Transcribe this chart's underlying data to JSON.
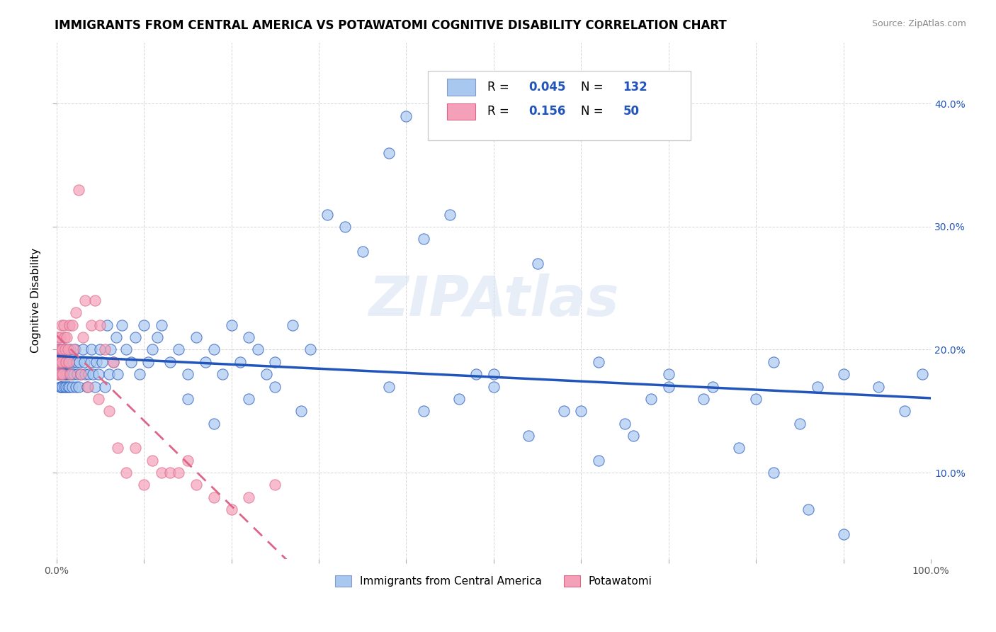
{
  "title": "IMMIGRANTS FROM CENTRAL AMERICA VS POTAWATOMI COGNITIVE DISABILITY CORRELATION CHART",
  "source": "Source: ZipAtlas.com",
  "ylabel": "Cognitive Disability",
  "y_ticks": [
    0.1,
    0.2,
    0.3,
    0.4
  ],
  "y_tick_labels": [
    "10.0%",
    "20.0%",
    "30.0%",
    "40.0%"
  ],
  "xlim": [
    0.0,
    1.0
  ],
  "ylim": [
    0.03,
    0.45
  ],
  "blue_R": "0.045",
  "blue_N": "132",
  "pink_R": "0.156",
  "pink_N": "50",
  "blue_color": "#a8c8f0",
  "pink_color": "#f4a0b8",
  "blue_line_color": "#2255bb",
  "pink_line_color": "#dd6688",
  "legend_label_blue": "Immigrants from Central America",
  "legend_label_pink": "Potawatomi",
  "blue_scatter_x": [
    0.001,
    0.002,
    0.002,
    0.003,
    0.003,
    0.004,
    0.004,
    0.005,
    0.005,
    0.005,
    0.006,
    0.006,
    0.006,
    0.007,
    0.007,
    0.008,
    0.008,
    0.009,
    0.009,
    0.01,
    0.01,
    0.01,
    0.011,
    0.011,
    0.012,
    0.012,
    0.013,
    0.013,
    0.014,
    0.015,
    0.015,
    0.016,
    0.016,
    0.017,
    0.018,
    0.019,
    0.02,
    0.021,
    0.022,
    0.023,
    0.024,
    0.025,
    0.026,
    0.028,
    0.03,
    0.032,
    0.033,
    0.035,
    0.037,
    0.039,
    0.04,
    0.042,
    0.044,
    0.046,
    0.048,
    0.05,
    0.052,
    0.055,
    0.058,
    0.06,
    0.062,
    0.065,
    0.068,
    0.07,
    0.075,
    0.08,
    0.085,
    0.09,
    0.095,
    0.1,
    0.105,
    0.11,
    0.115,
    0.12,
    0.13,
    0.14,
    0.15,
    0.16,
    0.17,
    0.18,
    0.19,
    0.2,
    0.21,
    0.22,
    0.23,
    0.24,
    0.25,
    0.27,
    0.29,
    0.31,
    0.33,
    0.35,
    0.38,
    0.4,
    0.42,
    0.45,
    0.48,
    0.5,
    0.55,
    0.6,
    0.62,
    0.65,
    0.68,
    0.7,
    0.75,
    0.8,
    0.82,
    0.85,
    0.87,
    0.9,
    0.38,
    0.42,
    0.46,
    0.5,
    0.54,
    0.58,
    0.62,
    0.66,
    0.7,
    0.74,
    0.78,
    0.82,
    0.86,
    0.9,
    0.94,
    0.97,
    0.99,
    0.15,
    0.18,
    0.22,
    0.25,
    0.28
  ],
  "blue_scatter_y": [
    0.19,
    0.18,
    0.2,
    0.18,
    0.19,
    0.17,
    0.2,
    0.18,
    0.19,
    0.17,
    0.18,
    0.19,
    0.2,
    0.17,
    0.18,
    0.19,
    0.18,
    0.17,
    0.19,
    0.18,
    0.19,
    0.2,
    0.17,
    0.18,
    0.19,
    0.18,
    0.17,
    0.18,
    0.19,
    0.17,
    0.18,
    0.19,
    0.2,
    0.18,
    0.17,
    0.19,
    0.18,
    0.2,
    0.17,
    0.19,
    0.18,
    0.17,
    0.19,
    0.18,
    0.2,
    0.19,
    0.18,
    0.17,
    0.18,
    0.19,
    0.2,
    0.18,
    0.17,
    0.19,
    0.18,
    0.2,
    0.19,
    0.17,
    0.22,
    0.18,
    0.2,
    0.19,
    0.21,
    0.18,
    0.22,
    0.2,
    0.19,
    0.21,
    0.18,
    0.22,
    0.19,
    0.2,
    0.21,
    0.22,
    0.19,
    0.2,
    0.18,
    0.21,
    0.19,
    0.2,
    0.18,
    0.22,
    0.19,
    0.21,
    0.2,
    0.18,
    0.19,
    0.22,
    0.2,
    0.31,
    0.3,
    0.28,
    0.36,
    0.39,
    0.29,
    0.31,
    0.18,
    0.17,
    0.27,
    0.15,
    0.19,
    0.14,
    0.16,
    0.18,
    0.17,
    0.16,
    0.19,
    0.14,
    0.17,
    0.18,
    0.17,
    0.15,
    0.16,
    0.18,
    0.13,
    0.15,
    0.11,
    0.13,
    0.17,
    0.16,
    0.12,
    0.1,
    0.07,
    0.05,
    0.17,
    0.15,
    0.18,
    0.16,
    0.14,
    0.16,
    0.17,
    0.15
  ],
  "pink_scatter_x": [
    0.001,
    0.002,
    0.002,
    0.003,
    0.003,
    0.004,
    0.004,
    0.005,
    0.006,
    0.006,
    0.007,
    0.007,
    0.008,
    0.009,
    0.01,
    0.011,
    0.012,
    0.013,
    0.014,
    0.015,
    0.016,
    0.018,
    0.02,
    0.022,
    0.025,
    0.028,
    0.03,
    0.033,
    0.036,
    0.04,
    0.044,
    0.048,
    0.05,
    0.055,
    0.06,
    0.065,
    0.07,
    0.08,
    0.09,
    0.1,
    0.11,
    0.12,
    0.13,
    0.14,
    0.15,
    0.16,
    0.18,
    0.2,
    0.22,
    0.25
  ],
  "pink_scatter_y": [
    0.19,
    0.21,
    0.18,
    0.2,
    0.19,
    0.21,
    0.18,
    0.2,
    0.22,
    0.19,
    0.2,
    0.18,
    0.22,
    0.21,
    0.2,
    0.19,
    0.21,
    0.2,
    0.19,
    0.22,
    0.18,
    0.22,
    0.2,
    0.23,
    0.33,
    0.18,
    0.21,
    0.24,
    0.17,
    0.22,
    0.24,
    0.16,
    0.22,
    0.2,
    0.15,
    0.19,
    0.12,
    0.1,
    0.12,
    0.09,
    0.11,
    0.1,
    0.1,
    0.1,
    0.11,
    0.09,
    0.08,
    0.07,
    0.08,
    0.09
  ]
}
